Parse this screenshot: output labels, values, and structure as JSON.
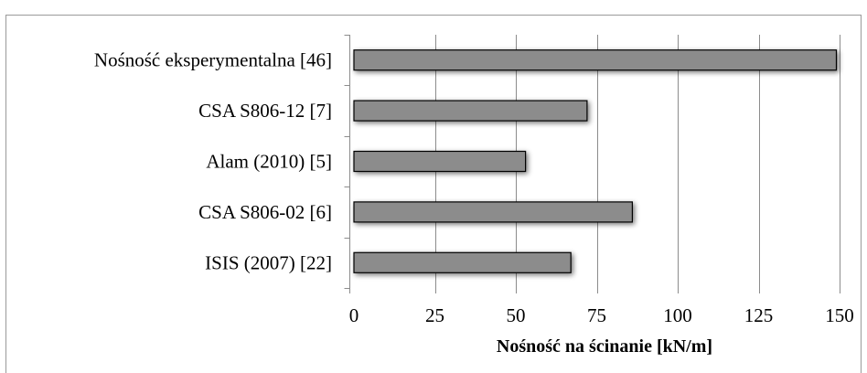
{
  "chart_data": {
    "type": "bar",
    "orientation": "horizontal",
    "categories": [
      "Nośność eksperymentalna [46]",
      "CSA S806-12 [7]",
      "Alam (2010) [5]",
      "CSA S806-02 [6]",
      "ISIS (2007) [22]"
    ],
    "values": [
      149,
      72,
      53,
      86,
      67
    ],
    "title": "",
    "xlabel": "Nośność na ścinanie [kN/m]",
    "ylabel": "",
    "xlim": [
      0,
      150
    ],
    "xticks": [
      0,
      25,
      50,
      75,
      100,
      125,
      150
    ],
    "xtick_labels": [
      "0",
      "25",
      "50",
      "75",
      "100",
      "125",
      "150"
    ],
    "grid": "vertical",
    "legend": "none",
    "bar_color": "#8c8c8c",
    "bar_edge_color": "#000000",
    "gridline_color": "#8c8c8c"
  }
}
